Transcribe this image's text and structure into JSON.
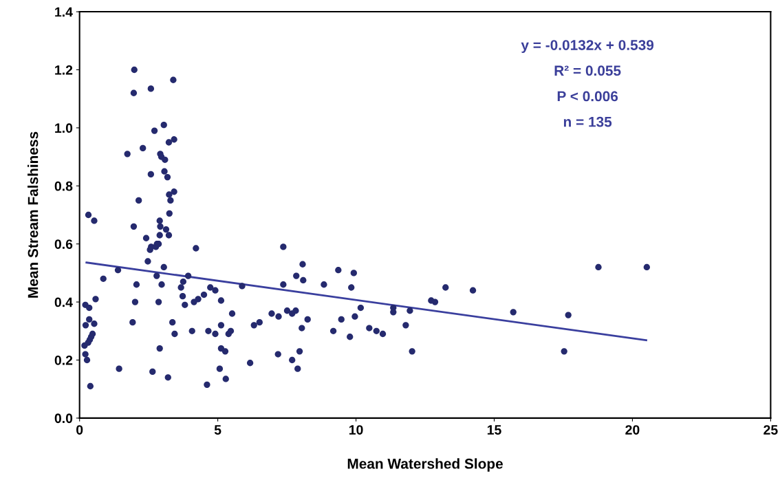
{
  "chart_data": {
    "type": "scatter",
    "xlabel": "Mean Watershed Slope",
    "ylabel": "Mean Stream Falshiness",
    "xlim": [
      0,
      25
    ],
    "xticks": [
      0,
      5,
      10,
      15,
      20,
      25
    ],
    "ylim": [
      0,
      1.4
    ],
    "yticks": [
      {
        "value": 0,
        "label": "0.0"
      },
      {
        "value": 0.2,
        "label": "0.2"
      },
      {
        "value": 0.4,
        "label": "0.4"
      },
      {
        "value": 0.6,
        "label": "0.6"
      },
      {
        "value": 0.8,
        "label": "0.8"
      },
      {
        "value": 1.0,
        "label": "1.0"
      },
      {
        "value": 1.2,
        "label": "1.2"
      },
      {
        "value": 1.4,
        "label": "1.4"
      }
    ],
    "grid": false,
    "marker": "circle",
    "series": [
      {
        "color": "#252a6e",
        "x": [
          1.98,
          3.39,
          1.96,
          2.58,
          3.05,
          2.71,
          3.42,
          3.23,
          1.73,
          2.29,
          2.92,
          2.96,
          3.09,
          2.58,
          3.07,
          3.18,
          3.42,
          3.24,
          3.29,
          2.14,
          3.25,
          0.32,
          0.53,
          1.96,
          2.9,
          2.92,
          3.13,
          2.9,
          3.23,
          2.41,
          2.8,
          2.59,
          4.21,
          2.55,
          2.76,
          2.86,
          2.47,
          1.39,
          0.86,
          3.05,
          2.79,
          2.97,
          2.06,
          3.93,
          3.75,
          3.67,
          0.58,
          2.01,
          2.86,
          3.73,
          3.81,
          4.14,
          4.29,
          0.21,
          0.35,
          0.35,
          0.22,
          0.53,
          1.92,
          3.36,
          3.44,
          4.07,
          0.47,
          0.42,
          0.37,
          0.31,
          0.18,
          0.21,
          0.27,
          2.9,
          1.43,
          2.64,
          3.2,
          0.39,
          7.37,
          8.07,
          7.84,
          8.09,
          9.36,
          9.92,
          7.37,
          8.84,
          9.83,
          5.88,
          4.73,
          4.91,
          4.5,
          5.12,
          5.52,
          6.95,
          7.2,
          7.51,
          7.82,
          7.69,
          8.25,
          8.04,
          10.17,
          9.96,
          9.47,
          9.18,
          9.78,
          10.48,
          10.74,
          10.97,
          11.35,
          11.35,
          11.95,
          11.8,
          12.03,
          5.12,
          4.66,
          4.91,
          5.47,
          5.39,
          5.12,
          5.27,
          6.31,
          6.51,
          6.17,
          7.18,
          7.96,
          7.69,
          7.89,
          5.07,
          5.29,
          4.61,
          13.24,
          14.23,
          12.72,
          12.86,
          15.69,
          17.68,
          17.53,
          18.77,
          20.52
        ],
        "values": [
          1.2,
          1.165,
          1.12,
          1.135,
          1.01,
          0.99,
          0.96,
          0.95,
          0.91,
          0.93,
          0.91,
          0.9,
          0.89,
          0.84,
          0.85,
          0.83,
          0.78,
          0.77,
          0.75,
          0.75,
          0.705,
          0.7,
          0.68,
          0.66,
          0.68,
          0.66,
          0.65,
          0.63,
          0.63,
          0.62,
          0.6,
          0.59,
          0.585,
          0.58,
          0.59,
          0.6,
          0.54,
          0.51,
          0.48,
          0.52,
          0.49,
          0.46,
          0.46,
          0.49,
          0.47,
          0.45,
          0.41,
          0.4,
          0.4,
          0.42,
          0.39,
          0.4,
          0.41,
          0.39,
          0.38,
          0.34,
          0.32,
          0.325,
          0.33,
          0.33,
          0.29,
          0.3,
          0.29,
          0.28,
          0.27,
          0.26,
          0.25,
          0.22,
          0.2,
          0.24,
          0.17,
          0.16,
          0.14,
          0.11,
          0.59,
          0.53,
          0.49,
          0.475,
          0.51,
          0.5,
          0.46,
          0.46,
          0.45,
          0.455,
          0.45,
          0.44,
          0.425,
          0.405,
          0.36,
          0.36,
          0.35,
          0.37,
          0.37,
          0.36,
          0.34,
          0.31,
          0.38,
          0.35,
          0.34,
          0.3,
          0.28,
          0.31,
          0.3,
          0.29,
          0.38,
          0.365,
          0.37,
          0.32,
          0.23,
          0.32,
          0.3,
          0.29,
          0.3,
          0.29,
          0.24,
          0.23,
          0.32,
          0.33,
          0.19,
          0.22,
          0.23,
          0.2,
          0.17,
          0.17,
          0.135,
          0.115,
          0.45,
          0.44,
          0.405,
          0.4,
          0.365,
          0.355,
          0.23,
          0.52,
          0.52
        ]
      },
      {
        "type": "line",
        "color": "#3a3f9e",
        "marker": "none",
        "line_style": "solid",
        "x": [
          0.25,
          20.5
        ],
        "values": [
          0.536,
          0.268
        ]
      }
    ],
    "annotations": [
      "y = -0.0132x + 0.539",
      "R² = 0.055",
      "P < 0.006",
      "n = 135"
    ]
  }
}
